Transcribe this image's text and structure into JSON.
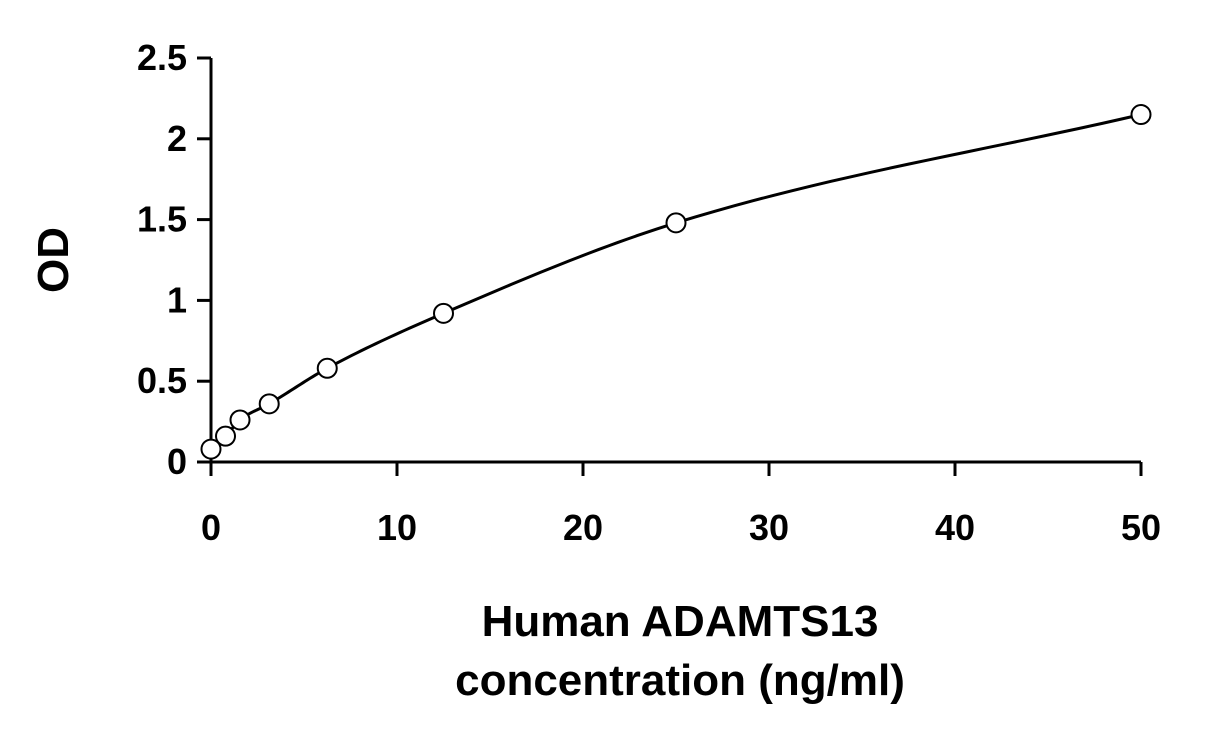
{
  "chart_data": {
    "type": "scatter",
    "title": "",
    "xlabel": [
      "Human ADAMTS13",
      "concentration (ng/ml)"
    ],
    "ylabel": "OD",
    "xlim": [
      0,
      50
    ],
    "ylim": [
      0,
      2.5
    ],
    "xticks": [
      "0",
      "10",
      "20",
      "30",
      "40",
      "50"
    ],
    "yticks": [
      "0",
      "0.5",
      "1",
      "1.5",
      "2",
      "2.5"
    ],
    "grid": false,
    "legend": "none",
    "series": [
      {
        "x": [
          0,
          0.78,
          1.56,
          3.13,
          6.25,
          12.5,
          25,
          50
        ],
        "y": [
          0.08,
          0.16,
          0.26,
          0.36,
          0.58,
          0.92,
          1.48,
          2.15
        ],
        "marker": "open-circle",
        "fit_line": true
      }
    ],
    "colors": {
      "axis": "#000000",
      "line": "#000000",
      "marker_fill": "#ffffff"
    }
  }
}
